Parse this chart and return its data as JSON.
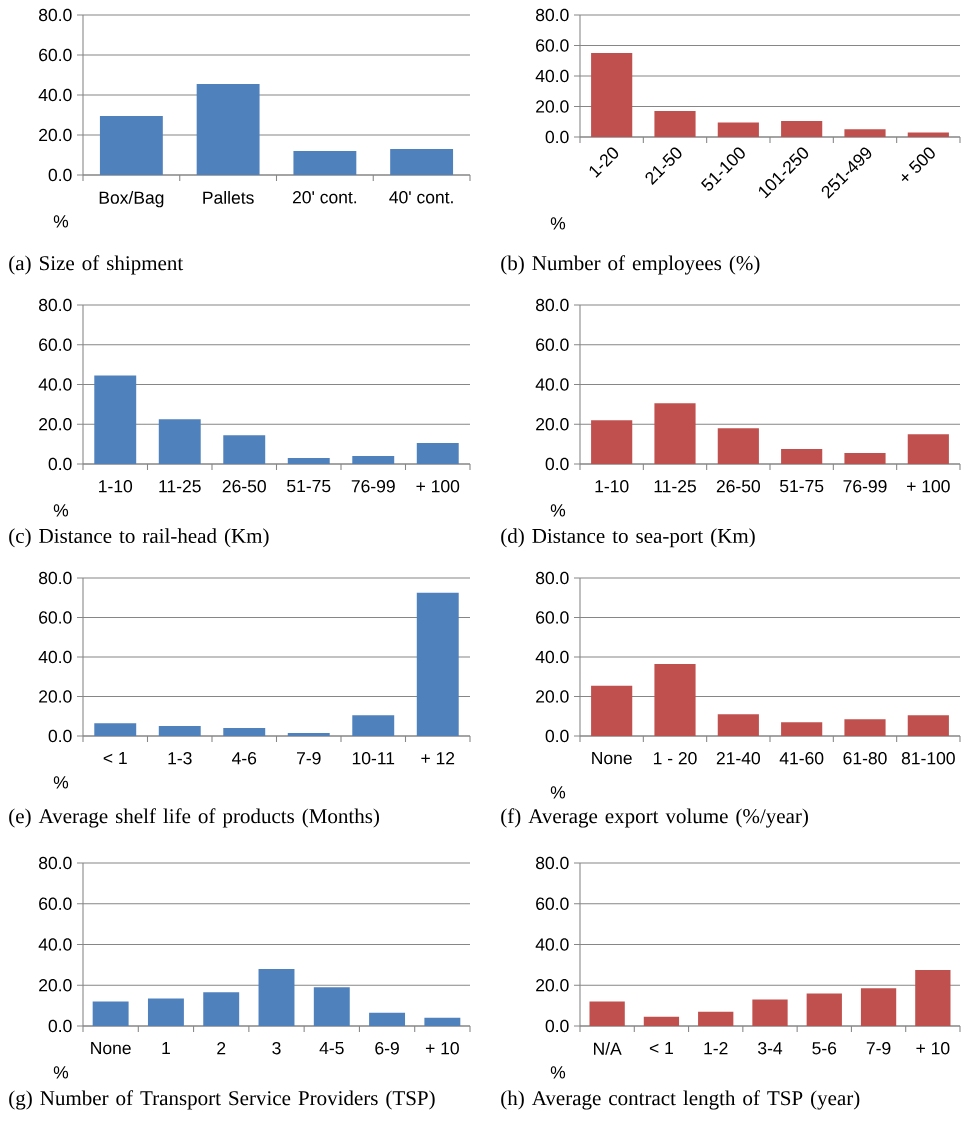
{
  "chart_data": [
    {
      "type": "bar",
      "title": "(a) Size of shipment",
      "ylabel": "%",
      "categories": [
        "Box/Bag",
        "Pallets",
        "20' cont.",
        "40' cont."
      ],
      "values": [
        29.5,
        45.5,
        12,
        13
      ],
      "color": "#4f81bd",
      "ylim": [
        0,
        80
      ],
      "yticks": [
        {
          "value": 0,
          "label": "0.0"
        },
        {
          "value": 20,
          "label": "20.0"
        },
        {
          "value": 40,
          "label": "40.0"
        },
        {
          "value": 60,
          "label": "60.0"
        },
        {
          "value": 80,
          "label": "80.0"
        }
      ],
      "grid": "y"
    },
    {
      "type": "bar",
      "title": "(b) Number of employees (%)",
      "ylabel": "%",
      "categories": [
        "1-20",
        "21-50",
        "51-100",
        "101-250",
        "251-499",
        "+ 500"
      ],
      "values": [
        55,
        17,
        9.5,
        10.5,
        5,
        3
      ],
      "color": "#c0504d",
      "ylim": [
        0,
        80
      ],
      "yticks": [
        {
          "value": 0,
          "label": "0.0"
        },
        {
          "value": 20,
          "label": "20.0"
        },
        {
          "value": 40,
          "label": "40.0"
        },
        {
          "value": 60,
          "label": "60.0"
        },
        {
          "value": 80,
          "label": "80.0"
        }
      ],
      "grid": "y"
    },
    {
      "type": "bar",
      "title": "(c) Distance to rail-head (Km)",
      "ylabel": "%",
      "categories": [
        "1-10",
        "11-25",
        "26-50",
        "51-75",
        "76-99",
        "+ 100"
      ],
      "values": [
        44.5,
        22.5,
        14.5,
        3,
        4,
        10.5
      ],
      "color": "#4f81bd",
      "ylim": [
        0,
        80
      ],
      "yticks": [
        {
          "value": 0,
          "label": "0.0"
        },
        {
          "value": 20,
          "label": "20.0"
        },
        {
          "value": 40,
          "label": "40.0"
        },
        {
          "value": 60,
          "label": "60.0"
        },
        {
          "value": 80,
          "label": "80.0"
        }
      ],
      "grid": "y"
    },
    {
      "type": "bar",
      "title": "(d) Distance to sea-port (Km)",
      "ylabel": "%",
      "categories": [
        "1-10",
        "11-25",
        "26-50",
        "51-75",
        "76-99",
        "+ 100"
      ],
      "values": [
        22,
        30.5,
        18,
        7.5,
        5.5,
        15
      ],
      "color": "#c0504d",
      "ylim": [
        0,
        80
      ],
      "yticks": [
        {
          "value": 0,
          "label": "0.0"
        },
        {
          "value": 20,
          "label": "20.0"
        },
        {
          "value": 40,
          "label": "40.0"
        },
        {
          "value": 60,
          "label": "60.0"
        },
        {
          "value": 80,
          "label": "80.0"
        }
      ],
      "grid": "y"
    },
    {
      "type": "bar",
      "title": "(e) Average shelf life of products (Months)",
      "ylabel": "%",
      "categories": [
        "< 1",
        "1-3",
        "4-6",
        "7-9",
        "10-11",
        "+ 12"
      ],
      "values": [
        6.5,
        5,
        4,
        1.5,
        10.5,
        72.5
      ],
      "color": "#4f81bd",
      "ylim": [
        0,
        80
      ],
      "yticks": [
        {
          "value": 0,
          "label": "0.0"
        },
        {
          "value": 20,
          "label": "20.0"
        },
        {
          "value": 40,
          "label": "40.0"
        },
        {
          "value": 60,
          "label": "60.0"
        },
        {
          "value": 80,
          "label": "80.0"
        }
      ],
      "grid": "y"
    },
    {
      "type": "bar",
      "title": "(f) Average export volume (%/year)",
      "ylabel": "%",
      "categories": [
        "None",
        "1 - 20",
        "21-40",
        "41-60",
        "61-80",
        "81-100"
      ],
      "values": [
        25.5,
        36.5,
        11,
        7,
        8.5,
        10.5
      ],
      "color": "#c0504d",
      "ylim": [
        0,
        80
      ],
      "yticks": [
        {
          "value": 0,
          "label": "0.0"
        },
        {
          "value": 20,
          "label": "20.0"
        },
        {
          "value": 40,
          "label": "40.0"
        },
        {
          "value": 60,
          "label": "60.0"
        },
        {
          "value": 80,
          "label": "80.0"
        }
      ],
      "grid": "y"
    },
    {
      "type": "bar",
      "title": "(g) Number of Transport Service Providers (TSP)",
      "ylabel": "%",
      "categories": [
        "None",
        "1",
        "2",
        "3",
        "4-5",
        "6-9",
        "+ 10"
      ],
      "values": [
        12,
        13.5,
        16.5,
        28,
        19,
        6.5,
        4
      ],
      "color": "#4f81bd",
      "ylim": [
        0,
        80
      ],
      "yticks": [
        {
          "value": 0,
          "label": "0.0"
        },
        {
          "value": 20,
          "label": "20.0"
        },
        {
          "value": 40,
          "label": "40.0"
        },
        {
          "value": 60,
          "label": "60.0"
        },
        {
          "value": 80,
          "label": "80.0"
        }
      ],
      "grid": "y"
    },
    {
      "type": "bar",
      "title": "(h) Average contract length of TSP (year)",
      "ylabel": "%",
      "categories": [
        "N/A",
        "< 1",
        "1-2",
        "3-4",
        "5-6",
        "7-9",
        "+ 10"
      ],
      "values": [
        12,
        4.5,
        7,
        13,
        16,
        18.5,
        27.5
      ],
      "color": "#c0504d",
      "ylim": [
        0,
        80
      ],
      "yticks": [
        {
          "value": 0,
          "label": "0.0"
        },
        {
          "value": 20,
          "label": "20.0"
        },
        {
          "value": 40,
          "label": "40.0"
        },
        {
          "value": 60,
          "label": "60.0"
        },
        {
          "value": 80,
          "label": "80.0"
        }
      ],
      "grid": "y"
    }
  ]
}
